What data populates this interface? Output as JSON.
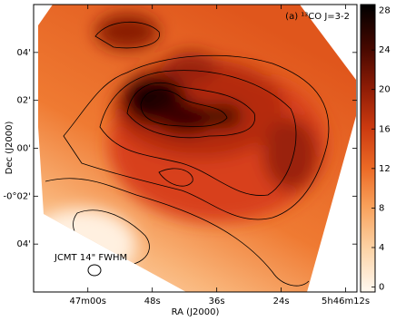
{
  "chart_data": {
    "type": "image-map",
    "annotation": "(a) ¹³CO J=3-2",
    "beam_label": "JCMT 14\" FWHM",
    "xlabel": "RA (J2000)",
    "ylabel": "Dec (J2000)",
    "xlim": [
      70.1,
      9.9
    ],
    "xticks": [
      {
        "value": 60,
        "label": "47m00s"
      },
      {
        "value": 48,
        "label": "48s"
      },
      {
        "value": 36,
        "label": "36s"
      },
      {
        "value": 24,
        "label": "24s"
      },
      {
        "value": 12,
        "label": "5h46m12s"
      }
    ],
    "ylim": [
      -6,
      6
    ],
    "yticks": [
      {
        "value": 4,
        "label": "04'"
      },
      {
        "value": 2,
        "label": "02'"
      },
      {
        "value": 0,
        "label": "00'"
      },
      {
        "value": -2,
        "label": "-0°02'"
      },
      {
        "value": -4,
        "label": "04'"
      }
    ],
    "colorbar": {
      "lim": [
        -0.5,
        28.6
      ],
      "ticks": [
        0,
        4,
        8,
        12,
        16,
        20,
        24,
        28
      ]
    }
  }
}
